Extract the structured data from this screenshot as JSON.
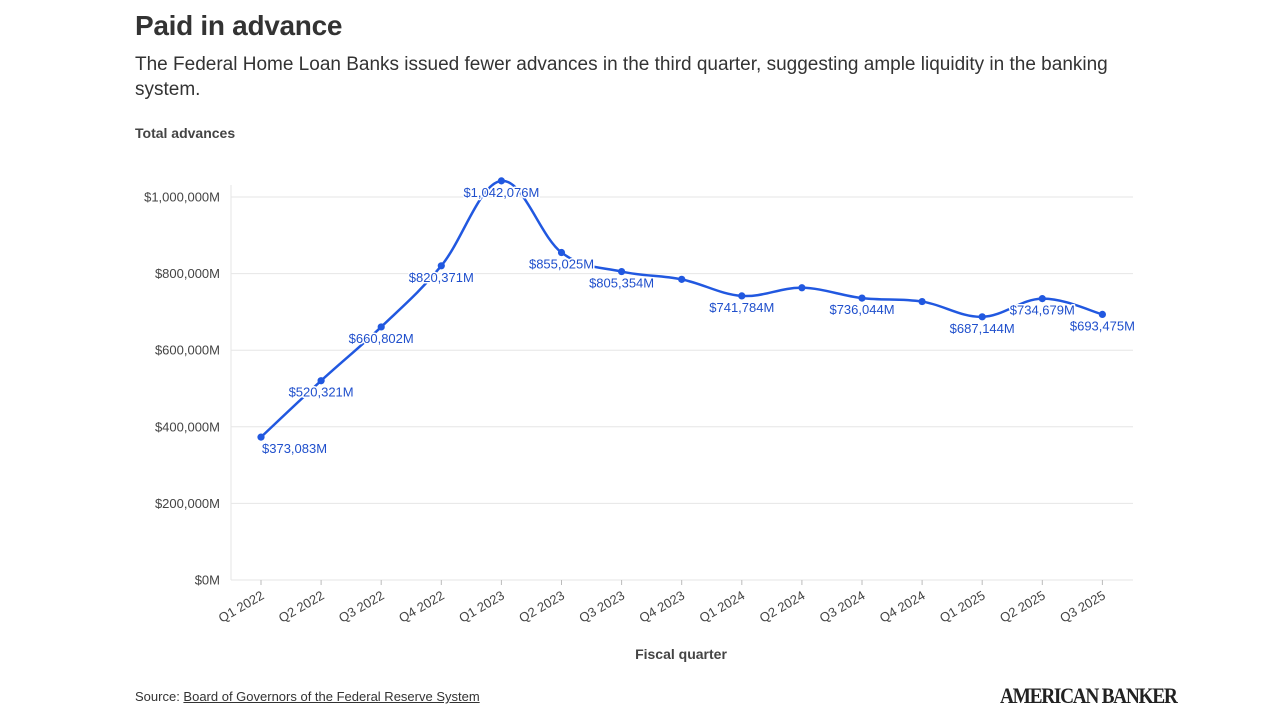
{
  "header": {
    "title": "Paid in advance",
    "subtitle": "The Federal Home Loan Banks issued fewer advances in the third quarter, suggesting ample liquidity in the banking system."
  },
  "footer": {
    "source_prefix": "Source: ",
    "source_link": "Board of Governors of the Federal Reserve System",
    "brand": "AMERICAN BANKER"
  },
  "chart_data": {
    "type": "line",
    "title": "Paid in advance",
    "ylabel": "Total advances",
    "xlabel": "Fiscal quarter",
    "categories": [
      "Q1 2022",
      "Q2 2022",
      "Q3 2022",
      "Q4 2022",
      "Q1 2023",
      "Q2 2023",
      "Q3 2023",
      "Q4 2023",
      "Q1 2024",
      "Q2 2024",
      "Q3 2024",
      "Q4 2024",
      "Q1 2025",
      "Q2 2025",
      "Q3 2025"
    ],
    "series": [
      {
        "values": [
          373083,
          520321,
          660802,
          820371,
          1042076,
          855025,
          805354,
          785000,
          741784,
          763000,
          736044,
          727000,
          687144,
          734679,
          693475
        ],
        "color": "#2158e0"
      }
    ],
    "data_labels": [
      {
        "index": 0,
        "text": "$373,083M",
        "pos": "below"
      },
      {
        "index": 1,
        "text": "$520,321M",
        "pos": "below"
      },
      {
        "index": 2,
        "text": "$660,802M",
        "pos": "below"
      },
      {
        "index": 3,
        "text": "$820,371M",
        "pos": "below"
      },
      {
        "index": 4,
        "text": "$1,042,076M",
        "pos": "below"
      },
      {
        "index": 5,
        "text": "$855,025M",
        "pos": "below"
      },
      {
        "index": 6,
        "text": "$805,354M",
        "pos": "below"
      },
      {
        "index": 8,
        "text": "$741,784M",
        "pos": "below"
      },
      {
        "index": 10,
        "text": "$736,044M",
        "pos": "below"
      },
      {
        "index": 12,
        "text": "$687,144M",
        "pos": "below"
      },
      {
        "index": 13,
        "text": "$734,679M",
        "pos": "below"
      },
      {
        "index": 14,
        "text": "$693,475M",
        "pos": "below"
      }
    ],
    "yticks": [
      0,
      200000,
      400000,
      600000,
      800000,
      1000000
    ],
    "ytick_labels": [
      "$0M",
      "$200,000M",
      "$400,000M",
      "$600,000M",
      "$800,000M",
      "$1,000,000M"
    ],
    "ylim": [
      0,
      1000000
    ],
    "grid": true,
    "legend": "none"
  }
}
